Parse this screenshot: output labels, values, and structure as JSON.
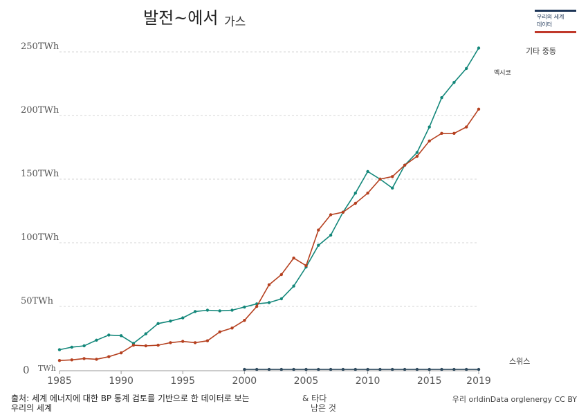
{
  "header": {
    "title": "발전~에서",
    "subtitle": "가스"
  },
  "logo": {
    "line1": "우리의 세계",
    "line2": "데이터"
  },
  "footer": {
    "source": "출처: 세계 에너지에 대한 BP 통계 검토를 기반으로 한 데이터로 보는",
    "source_line2": "우리의 세계",
    "note_line1": "& 타다",
    "note_line2": "남은 것",
    "license": "우리 orldinData orglenergy CC BY"
  },
  "chart_data": {
    "type": "line",
    "title": "발전~에서",
    "subtitle": "가스",
    "xlabel": "",
    "ylabel": "",
    "xlim": [
      1985,
      2019
    ],
    "ylim": [
      0,
      250
    ],
    "x_ticks": [
      "1985",
      "1990",
      "1995",
      "2000",
      "2005",
      "2010",
      "2015",
      "2019"
    ],
    "y_ticks": [
      {
        "value": 0,
        "label": "0"
      },
      {
        "value": 50,
        "label": "50TWh"
      },
      {
        "value": 100,
        "label": "100TWh"
      },
      {
        "value": 150,
        "label": "150TWh"
      },
      {
        "value": 200,
        "label": "200TWh"
      },
      {
        "value": 250,
        "label": "250TWh"
      }
    ],
    "zero_unit_label": "TWh",
    "grid": true,
    "series": [
      {
        "name": "기타 중동",
        "color": "#13877a",
        "x": [
          1985,
          1986,
          1987,
          1988,
          1989,
          1990,
          1991,
          1992,
          1993,
          1994,
          1995,
          1996,
          1997,
          1998,
          1999,
          2000,
          2001,
          2002,
          2003,
          2004,
          2005,
          2006,
          2007,
          2008,
          2009,
          2010,
          2011,
          2012,
          2013,
          2014,
          2015,
          2016,
          2017,
          2018,
          2019
        ],
        "values": [
          16,
          18,
          19,
          23.5,
          27.5,
          27,
          21,
          28.5,
          36.5,
          38.5,
          41,
          46,
          47,
          46.5,
          47,
          49.5,
          52,
          53,
          56,
          66,
          81,
          98,
          106,
          124,
          139,
          156,
          150,
          143,
          161,
          171,
          191,
          214,
          226,
          237,
          253
        ]
      },
      {
        "name": "멕시코",
        "color": "#b5401f",
        "x": [
          1985,
          1986,
          1987,
          1988,
          1989,
          1990,
          1991,
          1992,
          1993,
          1994,
          1995,
          1996,
          1997,
          1998,
          1999,
          2000,
          2001,
          2002,
          2003,
          2004,
          2005,
          2006,
          2007,
          2008,
          2009,
          2010,
          2011,
          2012,
          2013,
          2014,
          2015,
          2016,
          2017,
          2018,
          2019
        ],
        "values": [
          7.5,
          8,
          9,
          8.5,
          10.5,
          13.5,
          19.5,
          19,
          19.5,
          21.5,
          22.5,
          21.5,
          23,
          30,
          33,
          39,
          50,
          67,
          75,
          88,
          82,
          110,
          122,
          124,
          131,
          139,
          150,
          152,
          161,
          168,
          180,
          186,
          186,
          191,
          205
        ]
      },
      {
        "name": "스위스",
        "color": "#2f4a5e",
        "x": [
          2000,
          2001,
          2002,
          2003,
          2004,
          2005,
          2006,
          2007,
          2008,
          2009,
          2010,
          2011,
          2012,
          2013,
          2014,
          2015,
          2016,
          2017,
          2018,
          2019
        ],
        "values": [
          0.5,
          0.5,
          0.5,
          0.5,
          0.5,
          0.5,
          0.5,
          0.5,
          0.5,
          0.5,
          0.5,
          0.5,
          0.5,
          0.5,
          0.5,
          0.5,
          0.5,
          0.5,
          0.5,
          0.5
        ]
      }
    ]
  }
}
